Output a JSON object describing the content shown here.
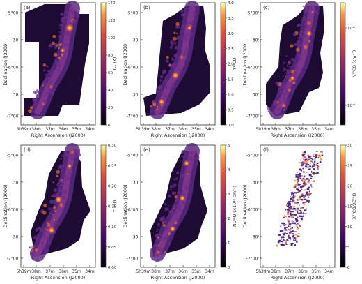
{
  "figure": {
    "panels": [
      {
        "id": "a",
        "label": "(a)",
        "colorbar": {
          "label": "Tₑₓ (K)",
          "ticks": [
            "140",
            "120",
            "100",
            "80",
            "60",
            "40",
            "20",
            "0"
          ],
          "scale": "linear",
          "colormap": "inferno-like"
        },
        "ylabel": "Declination (J2000)",
        "xlabel": "Right Ascension (J2000)",
        "yticks": [
          "-5°00'",
          "30'",
          "-6°00'",
          "30'",
          "-7°00'"
        ],
        "xticks": [
          "5h39m",
          "38m",
          "37m",
          "36m",
          "35m",
          "34m"
        ],
        "background": "white"
      },
      {
        "id": "b",
        "label": "(b)",
        "colorbar": {
          "label": "τ¹³CO",
          "ticks": [
            "4.0",
            "3.5",
            "3.0",
            "2.5",
            "2.0",
            "1.5",
            "1.0",
            "0.5",
            "0.0"
          ],
          "scale": "linear",
          "colormap": "inferno-like"
        },
        "ylabel": "Declination (J2000)",
        "xlabel": "Right Ascension (J2000)",
        "yticks": [
          "-5°00'",
          "30'",
          "-6°00'",
          "30'",
          "-7°00'"
        ],
        "xticks": [
          "5h39m",
          "38m",
          "37m",
          "36m",
          "35m",
          "34m"
        ],
        "background": "white"
      },
      {
        "id": "c",
        "label": "(c)",
        "colorbar": {
          "label": "N¹³CO (cm⁻²)",
          "ticks": [
            "10¹⁷",
            "10¹⁶"
          ],
          "scale": "log",
          "colormap": "inferno-like"
        },
        "ylabel": "Declination (J2000)",
        "xlabel": "Right Ascension (J2000)",
        "yticks": [
          "-5°00'",
          "30'",
          "-6°00'",
          "30'",
          "-7°00'"
        ],
        "xticks": [
          "5h39m",
          "38m",
          "37m",
          "36m",
          "35m",
          "34m"
        ],
        "background": "white"
      },
      {
        "id": "d",
        "label": "(d)",
        "colorbar": {
          "label": "τC¹⁸O",
          "ticks": [
            "0.30",
            "0.25",
            "0.20",
            "0.15",
            "0.10",
            "0.05",
            "0.00"
          ],
          "scale": "linear",
          "colormap": "inferno-like"
        },
        "ylabel": "Declination (J2000)",
        "xlabel": "Right Ascension (J2000)",
        "yticks": [
          "-5°00'",
          "30'",
          "-6°00'",
          "30'",
          "-7°00'"
        ],
        "xticks": [
          "5h39m",
          "38m",
          "37m",
          "36m",
          "35m",
          "34m"
        ],
        "background": "white"
      },
      {
        "id": "e",
        "label": "(e)",
        "colorbar": {
          "label": "NC¹⁸O (×10¹⁵ cm⁻²)",
          "ticks": [
            "5",
            "4",
            "3",
            "2",
            "1",
            "0"
          ],
          "scale": "linear",
          "colormap": "inferno-like"
        },
        "ylabel": "Declination (J2000)",
        "xlabel": "Right Ascension (J2000)",
        "yticks": [
          "-5°00'",
          "30'",
          "-6°00'",
          "30'",
          "-7°00'"
        ],
        "xticks": [
          "5h39m",
          "38m",
          "37m",
          "36m",
          "35m",
          "34m"
        ],
        "background": "white"
      },
      {
        "id": "f",
        "label": "(f)",
        "colorbar": {
          "label": "X¹³CO/XC¹⁸O",
          "ticks": [
            "30",
            "25",
            "20",
            "15",
            "10",
            "5",
            "0"
          ],
          "scale": "linear",
          "colormap": "inferno-like"
        },
        "ylabel": "Declination (J2000)",
        "xlabel": "Right Ascension (J2000)",
        "yticks": [
          "-5°00'",
          "30'",
          "-6°00'",
          "30'",
          "-7°00'"
        ],
        "xticks": [
          "5h39m",
          "38m",
          "37m",
          "36m",
          "35m",
          "34m"
        ],
        "background": "white"
      }
    ]
  },
  "colors": {
    "map_dark": "#1d0b33",
    "map_mid": "#5a2a82",
    "map_bright": "#e86a35",
    "map_peak": "#fde07a",
    "sparse_low": "#4a2a8a",
    "sparse_high": "#f09a45",
    "frame": "#333333"
  }
}
